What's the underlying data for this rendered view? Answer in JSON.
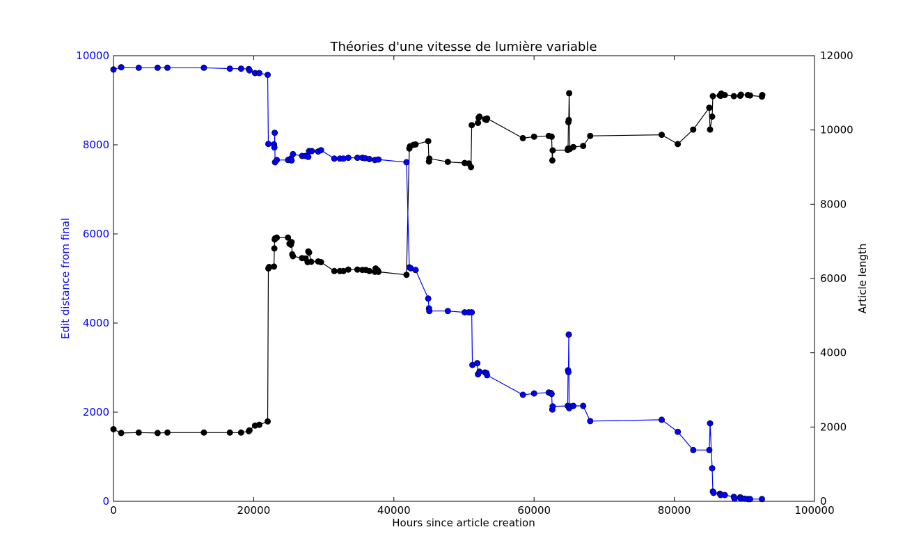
{
  "chart_data": {
    "type": "line",
    "title": "Théories d'une vitesse de lumière variable",
    "xlabel": "Hours since article creation",
    "ylabel_left": "Edit distance from final",
    "ylabel_right": "Article length",
    "xlim": [
      0,
      100000
    ],
    "ylim_left": [
      0,
      10000
    ],
    "ylim_right": [
      0,
      12000
    ],
    "x_ticks": [
      "0",
      "20000",
      "40000",
      "60000",
      "80000",
      "100000"
    ],
    "y_left_ticks": [
      "0",
      "2000",
      "4000",
      "6000",
      "8000",
      "10000"
    ],
    "y_right_ticks": [
      "0",
      "2000",
      "4000",
      "6000",
      "8000",
      "10000",
      "12000"
    ],
    "grid": false,
    "colors": {
      "left": "#0000ff",
      "right": "#000000"
    },
    "series": [
      {
        "axis": "left",
        "color": "#0000ff",
        "points": [
          [
            0,
            9690
          ],
          [
            1100,
            9740
          ],
          [
            3600,
            9730
          ],
          [
            6300,
            9730
          ],
          [
            7700,
            9730
          ],
          [
            12900,
            9730
          ],
          [
            16600,
            9710
          ],
          [
            18200,
            9710
          ],
          [
            19300,
            9700
          ],
          [
            19400,
            9670
          ],
          [
            20200,
            9610
          ],
          [
            20800,
            9610
          ],
          [
            22000,
            9570
          ],
          [
            22100,
            8020
          ],
          [
            22900,
            8010
          ],
          [
            22950,
            7940
          ],
          [
            23000,
            8270
          ],
          [
            23050,
            7610
          ],
          [
            23300,
            7660
          ],
          [
            24900,
            7660
          ],
          [
            25300,
            7690
          ],
          [
            25400,
            7650
          ],
          [
            25600,
            7790
          ],
          [
            26900,
            7750
          ],
          [
            27400,
            7750
          ],
          [
            27800,
            7730
          ],
          [
            27900,
            7860
          ],
          [
            28300,
            7860
          ],
          [
            29200,
            7850
          ],
          [
            29600,
            7880
          ],
          [
            31500,
            7690
          ],
          [
            32300,
            7690
          ],
          [
            32800,
            7690
          ],
          [
            33500,
            7710
          ],
          [
            34800,
            7710
          ],
          [
            35500,
            7710
          ],
          [
            35900,
            7700
          ],
          [
            36500,
            7680
          ],
          [
            37300,
            7660
          ],
          [
            37800,
            7670
          ],
          [
            41800,
            7610
          ],
          [
            42200,
            5250
          ],
          [
            42400,
            5230
          ],
          [
            43100,
            5190
          ],
          [
            44900,
            4550
          ],
          [
            45000,
            4330
          ],
          [
            45050,
            4270
          ],
          [
            47700,
            4270
          ],
          [
            50100,
            4240
          ],
          [
            50700,
            4240
          ],
          [
            51100,
            4240
          ],
          [
            51200,
            3060
          ],
          [
            51900,
            3100
          ],
          [
            52000,
            2850
          ],
          [
            52200,
            2910
          ],
          [
            53000,
            2890
          ],
          [
            53200,
            2880
          ],
          [
            53300,
            2830
          ],
          [
            58400,
            2390
          ],
          [
            60000,
            2420
          ],
          [
            62100,
            2440
          ],
          [
            62400,
            2430
          ],
          [
            62500,
            2410
          ],
          [
            62600,
            2060
          ],
          [
            62650,
            2130
          ],
          [
            64800,
            2140
          ],
          [
            64850,
            2940
          ],
          [
            64900,
            2900
          ],
          [
            64950,
            3740
          ],
          [
            65000,
            2090
          ],
          [
            65200,
            2130
          ],
          [
            65600,
            2140
          ],
          [
            67000,
            2140
          ],
          [
            68000,
            1800
          ],
          [
            78200,
            1830
          ],
          [
            80500,
            1560
          ],
          [
            82700,
            1150
          ],
          [
            85000,
            1150
          ],
          [
            85100,
            1750
          ],
          [
            85400,
            740
          ],
          [
            85500,
            220
          ],
          [
            85600,
            190
          ],
          [
            86500,
            170
          ],
          [
            86600,
            140
          ],
          [
            87200,
            140
          ],
          [
            88500,
            100
          ],
          [
            88600,
            60
          ],
          [
            89400,
            90
          ],
          [
            89500,
            60
          ],
          [
            90000,
            60
          ],
          [
            90500,
            50
          ],
          [
            90800,
            50
          ],
          [
            92500,
            50
          ]
        ]
      },
      {
        "axis": "right",
        "color": "#000000",
        "points": [
          [
            0,
            1940
          ],
          [
            1100,
            1840
          ],
          [
            3600,
            1850
          ],
          [
            6300,
            1840
          ],
          [
            7700,
            1850
          ],
          [
            12900,
            1850
          ],
          [
            16600,
            1850
          ],
          [
            18200,
            1850
          ],
          [
            19300,
            1890
          ],
          [
            19400,
            1910
          ],
          [
            20200,
            2040
          ],
          [
            20800,
            2060
          ],
          [
            22000,
            2150
          ],
          [
            22100,
            6270
          ],
          [
            22200,
            6310
          ],
          [
            22900,
            6320
          ],
          [
            22950,
            6810
          ],
          [
            23000,
            7050
          ],
          [
            23050,
            7080
          ],
          [
            23300,
            7100
          ],
          [
            24900,
            7100
          ],
          [
            25100,
            6940
          ],
          [
            25300,
            6910
          ],
          [
            25400,
            6980
          ],
          [
            25500,
            6650
          ],
          [
            25600,
            6600
          ],
          [
            26900,
            6550
          ],
          [
            27400,
            6540
          ],
          [
            27700,
            6440
          ],
          [
            27800,
            6730
          ],
          [
            27900,
            6700
          ],
          [
            28200,
            6450
          ],
          [
            29200,
            6460
          ],
          [
            29600,
            6440
          ],
          [
            31500,
            6200
          ],
          [
            32300,
            6200
          ],
          [
            32800,
            6200
          ],
          [
            33500,
            6240
          ],
          [
            34800,
            6240
          ],
          [
            35500,
            6230
          ],
          [
            36000,
            6230
          ],
          [
            36500,
            6200
          ],
          [
            37300,
            6180
          ],
          [
            37400,
            6270
          ],
          [
            37700,
            6220
          ],
          [
            37800,
            6180
          ],
          [
            41800,
            6100
          ],
          [
            42200,
            9500
          ],
          [
            42300,
            9560
          ],
          [
            42800,
            9600
          ],
          [
            43100,
            9610
          ],
          [
            44900,
            9700
          ],
          [
            45000,
            9150
          ],
          [
            45050,
            9230
          ],
          [
            47700,
            9140
          ],
          [
            50100,
            9110
          ],
          [
            50700,
            9100
          ],
          [
            51000,
            9000
          ],
          [
            51100,
            10130
          ],
          [
            52000,
            10190
          ],
          [
            52100,
            10330
          ],
          [
            52200,
            10360
          ],
          [
            53000,
            10290
          ],
          [
            53200,
            10270
          ],
          [
            53300,
            10310
          ],
          [
            58400,
            9780
          ],
          [
            60000,
            9820
          ],
          [
            62100,
            9840
          ],
          [
            62500,
            9820
          ],
          [
            62600,
            9180
          ],
          [
            62650,
            9450
          ],
          [
            64800,
            9460
          ],
          [
            64850,
            9500
          ],
          [
            64900,
            10210
          ],
          [
            64950,
            10270
          ],
          [
            65000,
            10990
          ],
          [
            65100,
            9490
          ],
          [
            65600,
            9540
          ],
          [
            67000,
            9570
          ],
          [
            68000,
            9840
          ],
          [
            78200,
            9870
          ],
          [
            80500,
            9620
          ],
          [
            82700,
            10010
          ],
          [
            85000,
            10600
          ],
          [
            85100,
            10010
          ],
          [
            85400,
            10360
          ],
          [
            85500,
            10910
          ],
          [
            86500,
            10930
          ],
          [
            86600,
            10920
          ],
          [
            86700,
            10980
          ],
          [
            87200,
            10940
          ],
          [
            88500,
            10910
          ],
          [
            89400,
            10920
          ],
          [
            89500,
            10950
          ],
          [
            90500,
            10940
          ],
          [
            90800,
            10930
          ],
          [
            92500,
            10900
          ],
          [
            92550,
            10940
          ]
        ]
      }
    ]
  }
}
